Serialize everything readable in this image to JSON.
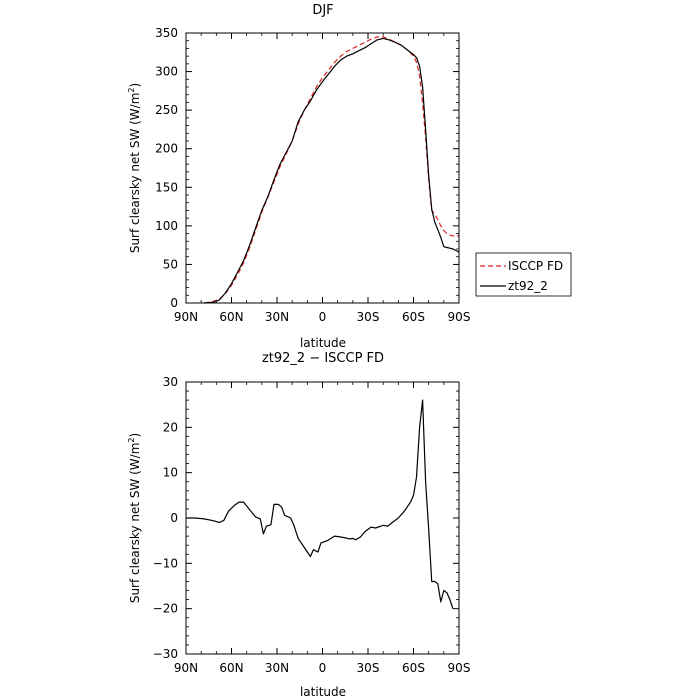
{
  "chart_data": [
    {
      "type": "line",
      "title": "DJF",
      "xlabel": "latitude",
      "ylabel": "Surf clearsky net SW (W/m²)",
      "ylabel_main": "Surf clearsky net SW (W/m",
      "ylabel_sup": "2",
      "ylabel_tail": ")",
      "xlim": [
        90,
        -90
      ],
      "ylim": [
        0,
        350
      ],
      "xticks": [
        90,
        60,
        30,
        0,
        -30,
        -60,
        -90
      ],
      "xtick_labels": [
        "90N",
        "60N",
        "30N",
        "0",
        "30S",
        "60S",
        "90S"
      ],
      "yticks": [
        0,
        50,
        100,
        150,
        200,
        250,
        300,
        350
      ],
      "ytick_labels": [
        "0",
        "50",
        "100",
        "150",
        "200",
        "250",
        "300",
        "350"
      ],
      "legend": "right, outside plot",
      "series": [
        {
          "name": "ISCCP FD",
          "color": "#dd2222",
          "style": "dashed",
          "points": [
            [
              78,
              0
            ],
            [
              72,
              2
            ],
            [
              68,
              5
            ],
            [
              64,
              12
            ],
            [
              60,
              23
            ],
            [
              56,
              37
            ],
            [
              52,
              52
            ],
            [
              48,
              72
            ],
            [
              44,
              95
            ],
            [
              40,
              118
            ],
            [
              36,
              137
            ],
            [
              32,
              157
            ],
            [
              28,
              177
            ],
            [
              24,
              193
            ],
            [
              20,
              210
            ],
            [
              16,
              232
            ],
            [
              12,
              250
            ],
            [
              8,
              265
            ],
            [
              4,
              280
            ],
            [
              0,
              292
            ],
            [
              -4,
              302
            ],
            [
              -8,
              312
            ],
            [
              -12,
              320
            ],
            [
              -16,
              326
            ],
            [
              -20,
              330
            ],
            [
              -24,
              334
            ],
            [
              -28,
              338
            ],
            [
              -32,
              342
            ],
            [
              -36,
              345
            ],
            [
              -40,
              345
            ],
            [
              -44,
              342
            ],
            [
              -48,
              338
            ],
            [
              -52,
              334
            ],
            [
              -56,
              328
            ],
            [
              -60,
              320
            ],
            [
              -62,
              312
            ],
            [
              -64,
              295
            ],
            [
              -66,
              258
            ],
            [
              -68,
              215
            ],
            [
              -70,
              160
            ],
            [
              -72,
              120
            ],
            [
              -74,
              115
            ],
            [
              -76,
              108
            ],
            [
              -78,
              100
            ],
            [
              -80,
              94
            ],
            [
              -82,
              90
            ],
            [
              -84,
              88
            ],
            [
              -86,
              87
            ],
            [
              -88,
              87
            ],
            [
              -90,
              87
            ]
          ]
        },
        {
          "name": "zt92_2",
          "color": "#000000",
          "style": "solid",
          "points": [
            [
              78,
              0
            ],
            [
              72,
              1
            ],
            [
              68,
              4
            ],
            [
              64,
              13
            ],
            [
              60,
              25
            ],
            [
              56,
              40
            ],
            [
              52,
              55
            ],
            [
              48,
              75
            ],
            [
              44,
              98
            ],
            [
              40,
              120
            ],
            [
              36,
              138
            ],
            [
              32,
              160
            ],
            [
              28,
              180
            ],
            [
              24,
              195
            ],
            [
              20,
              210
            ],
            [
              16,
              235
            ],
            [
              12,
              250
            ],
            [
              8,
              262
            ],
            [
              4,
              276
            ],
            [
              0,
              287
            ],
            [
              -4,
              297
            ],
            [
              -8,
              307
            ],
            [
              -12,
              315
            ],
            [
              -16,
              320
            ],
            [
              -20,
              323
            ],
            [
              -24,
              327
            ],
            [
              -28,
              331
            ],
            [
              -32,
              336
            ],
            [
              -36,
              341
            ],
            [
              -40,
              343
            ],
            [
              -44,
              341
            ],
            [
              -48,
              338
            ],
            [
              -52,
              334
            ],
            [
              -56,
              328
            ],
            [
              -60,
              322
            ],
            [
              -62,
              318
            ],
            [
              -64,
              307
            ],
            [
              -66,
              280
            ],
            [
              -68,
              225
            ],
            [
              -70,
              165
            ],
            [
              -72,
              122
            ],
            [
              -74,
              105
            ],
            [
              -76,
              95
            ],
            [
              -78,
              85
            ],
            [
              -80,
              73
            ],
            [
              -82,
              72
            ],
            [
              -84,
              71
            ],
            [
              -86,
              70
            ],
            [
              -88,
              68
            ],
            [
              -90,
              66
            ]
          ]
        }
      ]
    },
    {
      "type": "line",
      "title": "zt92_2 − ISCCP FD",
      "xlabel": "latitude",
      "ylabel": "Surf clearsky net SW (W/m²)",
      "ylabel_main": "Surf clearsky net SW (W/m",
      "ylabel_sup": "2",
      "ylabel_tail": ")",
      "xlim": [
        90,
        -90
      ],
      "ylim": [
        -30,
        30
      ],
      "xticks": [
        90,
        60,
        30,
        0,
        -30,
        -60,
        -90
      ],
      "xtick_labels": [
        "90N",
        "60N",
        "30N",
        "0",
        "30S",
        "60S",
        "90S"
      ],
      "yticks": [
        -30,
        -20,
        -10,
        0,
        10,
        20,
        30
      ],
      "ytick_labels": [
        "−30",
        "−20",
        "−10",
        "0",
        "10",
        "20",
        "30"
      ],
      "series": [
        {
          "color": "#000000",
          "style": "solid",
          "points": [
            [
              90,
              0
            ],
            [
              84,
              0
            ],
            [
              78,
              -0.2
            ],
            [
              72,
              -0.6
            ],
            [
              68,
              -1
            ],
            [
              65,
              -0.5
            ],
            [
              62,
              1.5
            ],
            [
              58,
              2.8
            ],
            [
              55,
              3.5
            ],
            [
              52,
              3.5
            ],
            [
              48,
              1.8
            ],
            [
              44,
              0.2
            ],
            [
              41,
              -0.2
            ],
            [
              39,
              -3.5
            ],
            [
              37,
              -1.8
            ],
            [
              34,
              -1.5
            ],
            [
              32,
              3
            ],
            [
              29,
              3
            ],
            [
              27,
              2.4
            ],
            [
              25,
              0.6
            ],
            [
              21,
              0
            ],
            [
              19,
              -1.5
            ],
            [
              16,
              -4.5
            ],
            [
              12,
              -6.5
            ],
            [
              8,
              -8.5
            ],
            [
              6,
              -7
            ],
            [
              3,
              -7.5
            ],
            [
              1,
              -5.5
            ],
            [
              -3,
              -5
            ],
            [
              -8,
              -4
            ],
            [
              -12,
              -4.2
            ],
            [
              -15,
              -4.4
            ],
            [
              -18,
              -4.6
            ],
            [
              -20,
              -4.5
            ],
            [
              -22,
              -4.8
            ],
            [
              -25,
              -4.2
            ],
            [
              -28,
              -3
            ],
            [
              -32,
              -2
            ],
            [
              -35,
              -2.2
            ],
            [
              -40,
              -1.6
            ],
            [
              -43,
              -1.8
            ],
            [
              -46,
              -1
            ],
            [
              -50,
              0
            ],
            [
              -54,
              1.5
            ],
            [
              -56,
              2.5
            ],
            [
              -58,
              3.5
            ],
            [
              -60,
              5
            ],
            [
              -62,
              9
            ],
            [
              -64,
              20
            ],
            [
              -66,
              26
            ],
            [
              -68,
              8
            ],
            [
              -70,
              -2.5
            ],
            [
              -72,
              -14
            ],
            [
              -74,
              -14
            ],
            [
              -76,
              -14.5
            ],
            [
              -78,
              -18.5
            ],
            [
              -80,
              -16
            ],
            [
              -82,
              -16.5
            ],
            [
              -84,
              -18
            ],
            [
              -86,
              -20
            ]
          ]
        }
      ]
    }
  ]
}
